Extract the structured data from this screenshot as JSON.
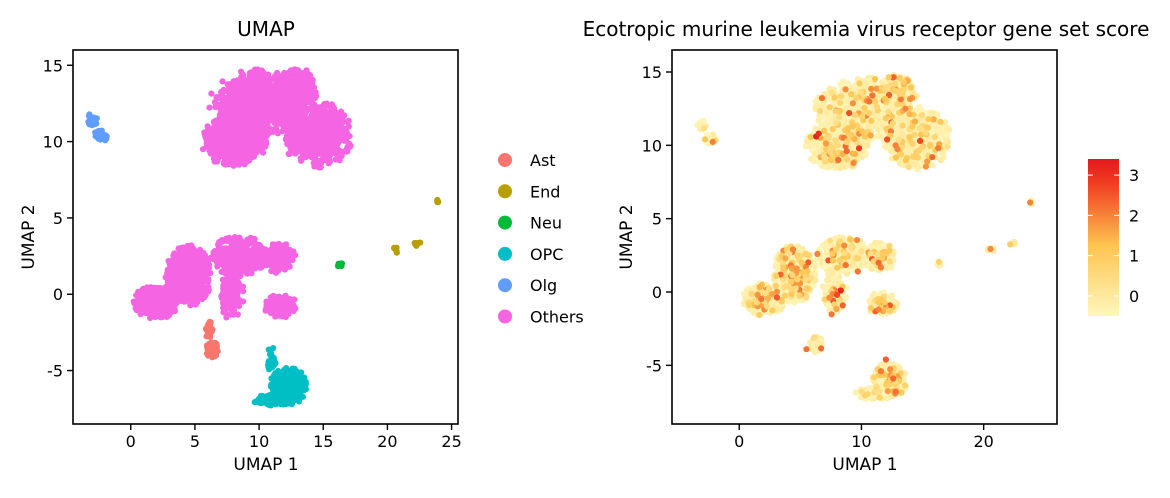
{
  "chart_data": [
    {
      "type": "scatter",
      "title": "UMAP",
      "xlabel": "UMAP 1",
      "ylabel": "UMAP 2",
      "xlim": [
        -4.5,
        25.5
      ],
      "ylim": [
        -8.5,
        16
      ],
      "xticks": [
        0,
        5,
        10,
        15,
        20,
        25
      ],
      "yticks": [
        -5,
        0,
        5,
        10,
        15
      ],
      "xtick_labels": [
        "0",
        "5",
        "10",
        "15",
        "20",
        "25"
      ],
      "ytick_labels": [
        "-5",
        "0",
        "5",
        "10",
        "15"
      ],
      "legend": {
        "position": "right",
        "entries": [
          "Ast",
          "End",
          "Neu",
          "OPC",
          "Olg",
          "Others"
        ]
      },
      "colors": {
        "Ast": "#F8766D",
        "End": "#B79F00",
        "Neu": "#00BA38",
        "OPC": "#00BFC4",
        "Olg": "#619CFF",
        "Others": "#F564E3"
      },
      "clusters": [
        {
          "group": "Others",
          "cx": 4.5,
          "cy": 1.2,
          "rx": 1.6,
          "ry": 1.8,
          "n": 700
        },
        {
          "group": "Others",
          "cx": 2.0,
          "cy": -0.5,
          "rx": 1.6,
          "ry": 1.0,
          "n": 450
        },
        {
          "group": "Others",
          "cx": 8.5,
          "cy": 2.5,
          "rx": 2.0,
          "ry": 1.2,
          "n": 450
        },
        {
          "group": "Others",
          "cx": 11.5,
          "cy": 2.4,
          "rx": 1.2,
          "ry": 0.9,
          "n": 250
        },
        {
          "group": "Others",
          "cx": 11.7,
          "cy": -0.8,
          "rx": 1.2,
          "ry": 0.7,
          "n": 160
        },
        {
          "group": "Others",
          "cx": 7.8,
          "cy": 0.0,
          "rx": 0.9,
          "ry": 1.5,
          "n": 160
        },
        {
          "group": "Others",
          "cx": 10.0,
          "cy": 12.5,
          "rx": 3.5,
          "ry": 2.0,
          "n": 800
        },
        {
          "group": "Others",
          "cx": 8.0,
          "cy": 10.0,
          "rx": 2.3,
          "ry": 1.5,
          "n": 650
        },
        {
          "group": "Others",
          "cx": 14.5,
          "cy": 10.5,
          "rx": 2.5,
          "ry": 2.0,
          "n": 650
        },
        {
          "group": "Others",
          "cx": 13.0,
          "cy": 13.5,
          "rx": 1.4,
          "ry": 1.2,
          "n": 350
        },
        {
          "group": "Ast",
          "cx": 6.3,
          "cy": -3.6,
          "rx": 0.5,
          "ry": 0.5,
          "n": 80
        },
        {
          "group": "Ast",
          "cx": 6.1,
          "cy": -2.3,
          "rx": 0.3,
          "ry": 0.6,
          "n": 25
        },
        {
          "group": "OPC",
          "cx": 12.3,
          "cy": -6.0,
          "rx": 1.3,
          "ry": 1.1,
          "n": 350
        },
        {
          "group": "OPC",
          "cx": 11.2,
          "cy": -6.9,
          "rx": 1.6,
          "ry": 0.4,
          "n": 80
        },
        {
          "group": "OPC",
          "cx": 11.0,
          "cy": -4.3,
          "rx": 0.3,
          "ry": 0.9,
          "n": 25
        },
        {
          "group": "Olg",
          "cx": -2.3,
          "cy": 10.4,
          "rx": 0.5,
          "ry": 0.35,
          "n": 40
        },
        {
          "group": "Olg",
          "cx": -3.0,
          "cy": 11.4,
          "rx": 0.4,
          "ry": 0.4,
          "n": 20
        },
        {
          "group": "End",
          "cx": 23.9,
          "cy": 6.1,
          "rx": 0.15,
          "ry": 0.15,
          "n": 5
        },
        {
          "group": "End",
          "cx": 20.6,
          "cy": 2.9,
          "rx": 0.25,
          "ry": 0.2,
          "n": 8
        },
        {
          "group": "End",
          "cx": 22.3,
          "cy": 3.3,
          "rx": 0.3,
          "ry": 0.15,
          "n": 8
        },
        {
          "group": "Neu",
          "cx": 16.3,
          "cy": 1.9,
          "rx": 0.3,
          "ry": 0.15,
          "n": 10
        }
      ]
    },
    {
      "type": "scatter",
      "title": "Ecotropic murine leukemia virus receptor gene set score",
      "xlabel": "UMAP 1",
      "ylabel": "UMAP 2",
      "xlim": [
        -5.5,
        26
      ],
      "ylim": [
        -9,
        16.5
      ],
      "xticks": [
        0,
        10,
        20
      ],
      "yticks": [
        -5,
        0,
        5,
        10,
        15
      ],
      "xtick_labels": [
        "0",
        "10",
        "20"
      ],
      "ytick_labels": [
        "-5",
        "0",
        "5",
        "10",
        "15"
      ],
      "colorbar": {
        "min": -0.5,
        "max": 3.4,
        "ticks": [
          0,
          1,
          2,
          3
        ],
        "tick_labels": [
          "0",
          "1",
          "2",
          "3"
        ],
        "low_color": "#FFF7BC",
        "mid_color": "#FEC44F",
        "high_color": "#F03B20",
        "top_color": "#E31A1C"
      },
      "clusters": [
        {
          "cx": 4.5,
          "cy": 1.2,
          "rx": 1.6,
          "ry": 1.8,
          "n": 700
        },
        {
          "cx": 2.0,
          "cy": -0.5,
          "rx": 1.6,
          "ry": 1.0,
          "n": 450
        },
        {
          "cx": 8.5,
          "cy": 2.5,
          "rx": 2.0,
          "ry": 1.2,
          "n": 450
        },
        {
          "cx": 11.5,
          "cy": 2.4,
          "rx": 1.2,
          "ry": 0.9,
          "n": 250
        },
        {
          "cx": 11.7,
          "cy": -0.8,
          "rx": 1.2,
          "ry": 0.7,
          "n": 160
        },
        {
          "cx": 7.8,
          "cy": 0.0,
          "rx": 0.9,
          "ry": 1.5,
          "n": 160
        },
        {
          "cx": 10.0,
          "cy": 12.5,
          "rx": 3.5,
          "ry": 2.0,
          "n": 800
        },
        {
          "cx": 8.0,
          "cy": 10.0,
          "rx": 2.3,
          "ry": 1.5,
          "n": 650
        },
        {
          "cx": 14.5,
          "cy": 10.5,
          "rx": 2.5,
          "ry": 2.0,
          "n": 650
        },
        {
          "cx": 13.0,
          "cy": 13.5,
          "rx": 1.4,
          "ry": 1.2,
          "n": 350
        },
        {
          "cx": 6.3,
          "cy": -3.6,
          "rx": 0.5,
          "ry": 0.5,
          "n": 80
        },
        {
          "cx": 12.3,
          "cy": -6.0,
          "rx": 1.3,
          "ry": 1.1,
          "n": 350
        },
        {
          "cx": 11.2,
          "cy": -6.9,
          "rx": 1.6,
          "ry": 0.4,
          "n": 80
        },
        {
          "cx": -2.3,
          "cy": 10.4,
          "rx": 0.5,
          "ry": 0.35,
          "n": 40
        },
        {
          "cx": -3.0,
          "cy": 11.4,
          "rx": 0.4,
          "ry": 0.4,
          "n": 20
        },
        {
          "cx": 23.9,
          "cy": 6.1,
          "rx": 0.15,
          "ry": 0.15,
          "n": 5
        },
        {
          "cx": 20.6,
          "cy": 2.9,
          "rx": 0.25,
          "ry": 0.2,
          "n": 8
        },
        {
          "cx": 22.3,
          "cy": 3.3,
          "rx": 0.3,
          "ry": 0.15,
          "n": 8
        },
        {
          "cx": 16.3,
          "cy": 1.9,
          "rx": 0.3,
          "ry": 0.15,
          "n": 10
        }
      ],
      "high_points": [
        [
          6.3,
          10.6,
          3.3
        ],
        [
          6.5,
          10.8,
          3.0
        ],
        [
          9.8,
          9.8,
          2.8
        ],
        [
          9.0,
          12.2,
          2.6
        ],
        [
          12.1,
          10.4,
          2.6
        ],
        [
          14.8,
          10.3,
          2.7
        ],
        [
          8.3,
          0.1,
          3.2
        ],
        [
          8.0,
          -0.2,
          2.7
        ],
        [
          9.7,
          1.4,
          2.2
        ],
        [
          11.4,
          2.0,
          2.3
        ],
        [
          6.4,
          2.6,
          2.0
        ],
        [
          5.5,
          -3.9,
          2.2
        ],
        [
          12.0,
          -4.6,
          2.4
        ],
        [
          12.6,
          -5.9,
          2.3
        ],
        [
          11.6,
          -5.4,
          2.1
        ],
        [
          23.8,
          6.1,
          2.0
        ],
        [
          10.9,
          13.4,
          2.2
        ],
        [
          15.8,
          9.2,
          2.3
        ],
        [
          8.1,
          9.0,
          2.2
        ],
        [
          13.6,
          12.5,
          2.0
        ],
        [
          4.4,
          2.9,
          2.0
        ],
        [
          1.5,
          -0.2,
          1.8
        ],
        [
          11.4,
          -1.2,
          2.0
        ],
        [
          12.8,
          -6.8,
          2.2
        ]
      ]
    }
  ]
}
